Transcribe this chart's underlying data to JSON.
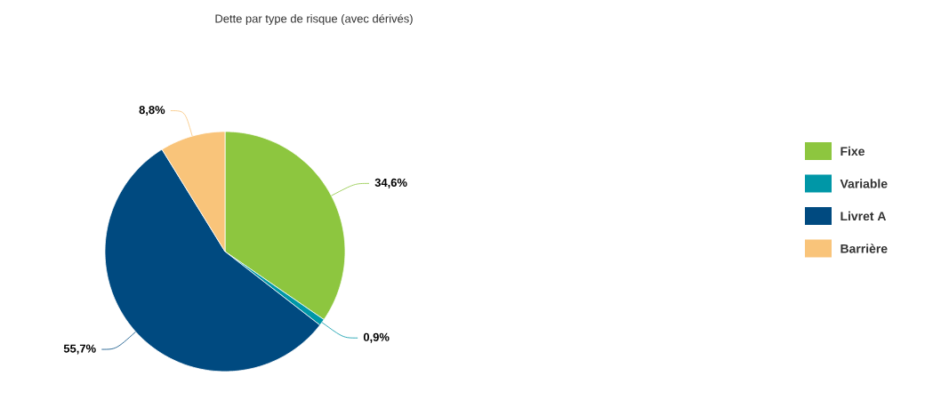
{
  "chart_data": {
    "type": "pie",
    "title": "Dette par type de risque (avec dérivés)",
    "categories": [
      "Fixe",
      "Variable",
      "Livret A",
      "Barrière"
    ],
    "values": [
      34.6,
      0.9,
      55.7,
      8.8
    ],
    "colors": [
      "#8dc63f",
      "#0097a7",
      "#004a80",
      "#f9c47a"
    ],
    "value_labels": [
      "34,6%",
      "0,9%",
      "55,7%",
      "8,8%"
    ],
    "legend": "right"
  }
}
